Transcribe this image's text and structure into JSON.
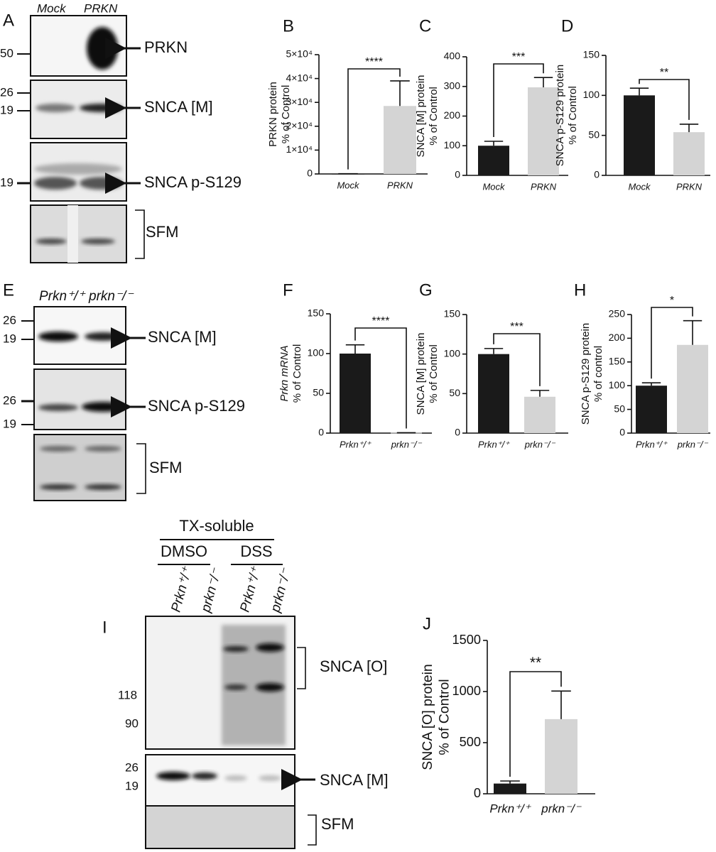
{
  "blots": {
    "A": {
      "letter": "A",
      "lanes": [
        "Mock",
        "PRKN"
      ],
      "markers": [
        50,
        26,
        19,
        19
      ],
      "labels": [
        "PRKN",
        "SNCA [M]",
        "SNCA p-S129",
        "SFM"
      ]
    },
    "E": {
      "letter": "E",
      "lanes": [
        "Prkn⁺/⁺",
        "prkn⁻/⁻"
      ],
      "markers": [
        26,
        19,
        26,
        19
      ],
      "labels": [
        "SNCA [M]",
        "SNCA p-S129",
        "SFM"
      ]
    },
    "I": {
      "letter": "I",
      "header": "TX-soluble",
      "groups": [
        "DMSO",
        "DSS"
      ],
      "lanes": [
        "Prkn⁺/⁺",
        "prkn⁻/⁻",
        "Prkn⁺/⁺",
        "prkn⁻/⁻"
      ],
      "markers": [
        118,
        90,
        26,
        19
      ],
      "labels": [
        "SNCA [O]",
        "SNCA [M]",
        "SFM"
      ]
    }
  },
  "chart_data": [
    {
      "type": "bar",
      "panel": "B",
      "ylabel": [
        "PRKN protein",
        "% of Control"
      ],
      "categories": [
        "Mock",
        "PRKN"
      ],
      "values": [
        100,
        28500
      ],
      "errors": [
        0,
        10500
      ],
      "colors": [
        "#1a1a1a",
        "#d4d4d4"
      ],
      "significance": "****",
      "ylim": [
        0,
        50000
      ],
      "yticks": [
        0,
        {
          "value": 10000,
          "label": "1×10⁴"
        },
        {
          "value": 20000,
          "label": "2×10⁴"
        },
        {
          "value": 30000,
          "label": "3×10⁴"
        },
        {
          "value": 40000,
          "label": "4×10⁴"
        },
        {
          "value": 50000,
          "label": "5×10⁴"
        }
      ]
    },
    {
      "type": "bar",
      "panel": "C",
      "ylabel": [
        "SNCA [M] protein",
        "% of Control"
      ],
      "categories": [
        "Mock",
        "PRKN"
      ],
      "values": [
        100,
        297
      ],
      "errors": [
        15,
        33
      ],
      "colors": [
        "#1a1a1a",
        "#d4d4d4"
      ],
      "significance": "***",
      "ylim": [
        0,
        400
      ],
      "yticks": [
        0,
        100,
        200,
        300,
        400
      ]
    },
    {
      "type": "bar",
      "panel": "D",
      "ylabel": [
        "SNCA p-S129 protein",
        "% of Control"
      ],
      "categories": [
        "Mock",
        "PRKN"
      ],
      "values": [
        100,
        54
      ],
      "errors": [
        9,
        10
      ],
      "colors": [
        "#1a1a1a",
        "#d4d4d4"
      ],
      "significance": "**",
      "ylim": [
        0,
        150
      ],
      "yticks": [
        0,
        50,
        100,
        150
      ]
    },
    {
      "type": "bar",
      "panel": "F",
      "ylabel": [
        "Prkn mRNA",
        "% of Control"
      ],
      "categories": [
        "Prkn⁺/⁺",
        "prkn⁻/⁻"
      ],
      "values": [
        100,
        0.5
      ],
      "errors": [
        11,
        0
      ],
      "colors": [
        "#1a1a1a",
        "#d4d4d4"
      ],
      "significance": "****",
      "ylim": [
        0,
        150
      ],
      "yticks": [
        0,
        50,
        100,
        150
      ]
    },
    {
      "type": "bar",
      "panel": "G",
      "ylabel": [
        "SNCA [M] protein",
        "% of Control"
      ],
      "categories": [
        "Prkn⁺/⁺",
        "prkn⁻/⁻"
      ],
      "values": [
        100,
        46
      ],
      "errors": [
        7,
        8
      ],
      "colors": [
        "#1a1a1a",
        "#d4d4d4"
      ],
      "significance": "***",
      "ylim": [
        0,
        150
      ],
      "yticks": [
        0,
        50,
        100,
        150
      ]
    },
    {
      "type": "bar",
      "panel": "H",
      "ylabel": [
        "SNCA p-S129 protein",
        "% of control"
      ],
      "categories": [
        "Prkn⁺/⁺",
        "prkn⁻/⁻"
      ],
      "values": [
        100,
        186
      ],
      "errors": [
        6,
        51
      ],
      "colors": [
        "#1a1a1a",
        "#d4d4d4"
      ],
      "significance": "*",
      "ylim": [
        0,
        250
      ],
      "yticks": [
        0,
        50,
        100,
        150,
        200,
        250
      ]
    },
    {
      "type": "bar",
      "panel": "J",
      "ylabel": [
        "SNCA [O] protein",
        "% of Control"
      ],
      "categories": [
        "Prkn⁺/⁺",
        "prkn⁻/⁻"
      ],
      "values": [
        100,
        730
      ],
      "errors": [
        25,
        275
      ],
      "colors": [
        "#1a1a1a",
        "#d4d4d4"
      ],
      "significance": "**",
      "ylim": [
        0,
        1500
      ],
      "yticks": [
        0,
        500,
        1000,
        1500
      ]
    }
  ]
}
